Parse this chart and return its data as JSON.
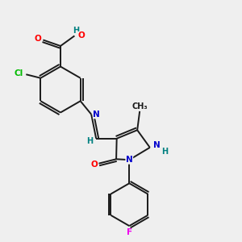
{
  "background_color": "#efefef",
  "bond_color": "#1a1a1a",
  "atom_colors": {
    "O": "#ff0000",
    "N": "#0000cc",
    "Cl": "#00bb00",
    "F": "#ee00ee",
    "H": "#008080",
    "C": "#1a1a1a"
  }
}
